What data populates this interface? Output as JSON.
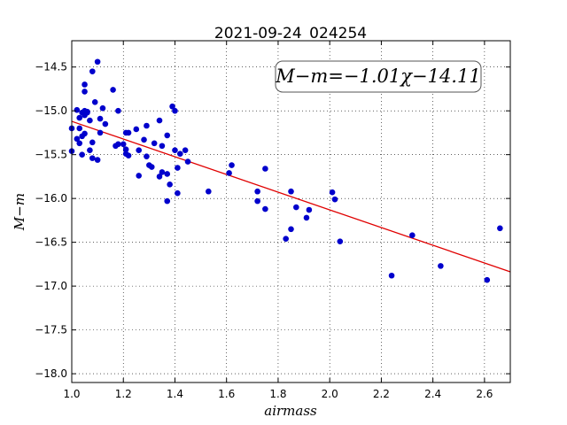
{
  "chart_data": {
    "type": "scatter",
    "title": "2021-09-24_024254",
    "xlabel": "airmass",
    "ylabel": "M−m",
    "annotation": "M−m=−1.01χ−14.11",
    "xlim": [
      1.0,
      2.7
    ],
    "ylim": [
      -18.1,
      -14.2
    ],
    "grid": true,
    "x_ticks": [
      1.0,
      1.2,
      1.4,
      1.6,
      1.8,
      2.0,
      2.2,
      2.4,
      2.6
    ],
    "x_tick_labels": [
      "1.0",
      "1.2",
      "1.4",
      "1.6",
      "1.8",
      "2.0",
      "2.2",
      "2.4",
      "2.6"
    ],
    "y_ticks": [
      -14.5,
      -15.0,
      -15.5,
      -16.0,
      -16.5,
      -17.0,
      -17.5,
      -18.0
    ],
    "y_tick_labels": [
      "−14.5",
      "−15.0",
      "−15.5",
      "−16.0",
      "−16.5",
      "−17.0",
      "−17.5",
      "−18.0"
    ],
    "fit_line": {
      "slope": -1.01,
      "intercept": -14.11,
      "color": "#e00000"
    },
    "point_color": "#0000cc",
    "points": [
      [
        1.0,
        -15.2
      ],
      [
        1.0,
        -15.46
      ],
      [
        1.02,
        -14.99
      ],
      [
        1.02,
        -15.32
      ],
      [
        1.03,
        -15.08
      ],
      [
        1.03,
        -15.2
      ],
      [
        1.03,
        -15.37
      ],
      [
        1.04,
        -15.02
      ],
      [
        1.04,
        -15.29
      ],
      [
        1.04,
        -15.5
      ],
      [
        1.05,
        -14.78
      ],
      [
        1.05,
        -15.26
      ],
      [
        1.05,
        -15.0
      ],
      [
        1.05,
        -15.05
      ],
      [
        1.05,
        -14.7
      ],
      [
        1.06,
        -15.01
      ],
      [
        1.06,
        -15.02
      ],
      [
        1.07,
        -15.11
      ],
      [
        1.07,
        -15.45
      ],
      [
        1.08,
        -14.55
      ],
      [
        1.08,
        -15.36
      ],
      [
        1.08,
        -15.54
      ],
      [
        1.09,
        -14.9
      ],
      [
        1.1,
        -15.56
      ],
      [
        1.1,
        -14.44
      ],
      [
        1.11,
        -15.09
      ],
      [
        1.11,
        -15.25
      ],
      [
        1.12,
        -14.97
      ],
      [
        1.13,
        -15.15
      ],
      [
        1.16,
        -14.76
      ],
      [
        1.17,
        -15.4
      ],
      [
        1.18,
        -15.38
      ],
      [
        1.18,
        -15.0
      ],
      [
        1.2,
        -15.38
      ],
      [
        1.21,
        -15.25
      ],
      [
        1.21,
        -15.49
      ],
      [
        1.21,
        -15.44
      ],
      [
        1.22,
        -15.51
      ],
      [
        1.22,
        -15.25
      ],
      [
        1.25,
        -15.21
      ],
      [
        1.26,
        -15.45
      ],
      [
        1.26,
        -15.74
      ],
      [
        1.28,
        -15.33
      ],
      [
        1.29,
        -15.17
      ],
      [
        1.29,
        -15.52
      ],
      [
        1.3,
        -15.62
      ],
      [
        1.31,
        -15.64
      ],
      [
        1.32,
        -15.37
      ],
      [
        1.34,
        -15.75
      ],
      [
        1.34,
        -15.11
      ],
      [
        1.35,
        -15.4
      ],
      [
        1.35,
        -15.7
      ],
      [
        1.37,
        -15.28
      ],
      [
        1.37,
        -15.72
      ],
      [
        1.37,
        -16.03
      ],
      [
        1.38,
        -15.84
      ],
      [
        1.39,
        -14.95
      ],
      [
        1.4,
        -15.0
      ],
      [
        1.4,
        -15.45
      ],
      [
        1.41,
        -15.65
      ],
      [
        1.41,
        -15.94
      ],
      [
        1.42,
        -15.49
      ],
      [
        1.44,
        -15.45
      ],
      [
        1.45,
        -15.58
      ],
      [
        1.53,
        -15.92
      ],
      [
        1.61,
        -15.71
      ],
      [
        1.62,
        -15.62
      ],
      [
        1.72,
        -15.92
      ],
      [
        1.72,
        -16.03
      ],
      [
        1.75,
        -16.12
      ],
      [
        1.75,
        -15.66
      ],
      [
        1.83,
        -16.46
      ],
      [
        1.85,
        -16.35
      ],
      [
        1.85,
        -15.92
      ],
      [
        1.87,
        -16.1
      ],
      [
        1.91,
        -16.22
      ],
      [
        1.92,
        -16.13
      ],
      [
        2.01,
        -15.93
      ],
      [
        2.02,
        -16.01
      ],
      [
        2.04,
        -16.49
      ],
      [
        2.24,
        -16.88
      ],
      [
        2.32,
        -16.42
      ],
      [
        2.43,
        -16.77
      ],
      [
        2.61,
        -16.93
      ],
      [
        2.66,
        -16.34
      ]
    ]
  }
}
